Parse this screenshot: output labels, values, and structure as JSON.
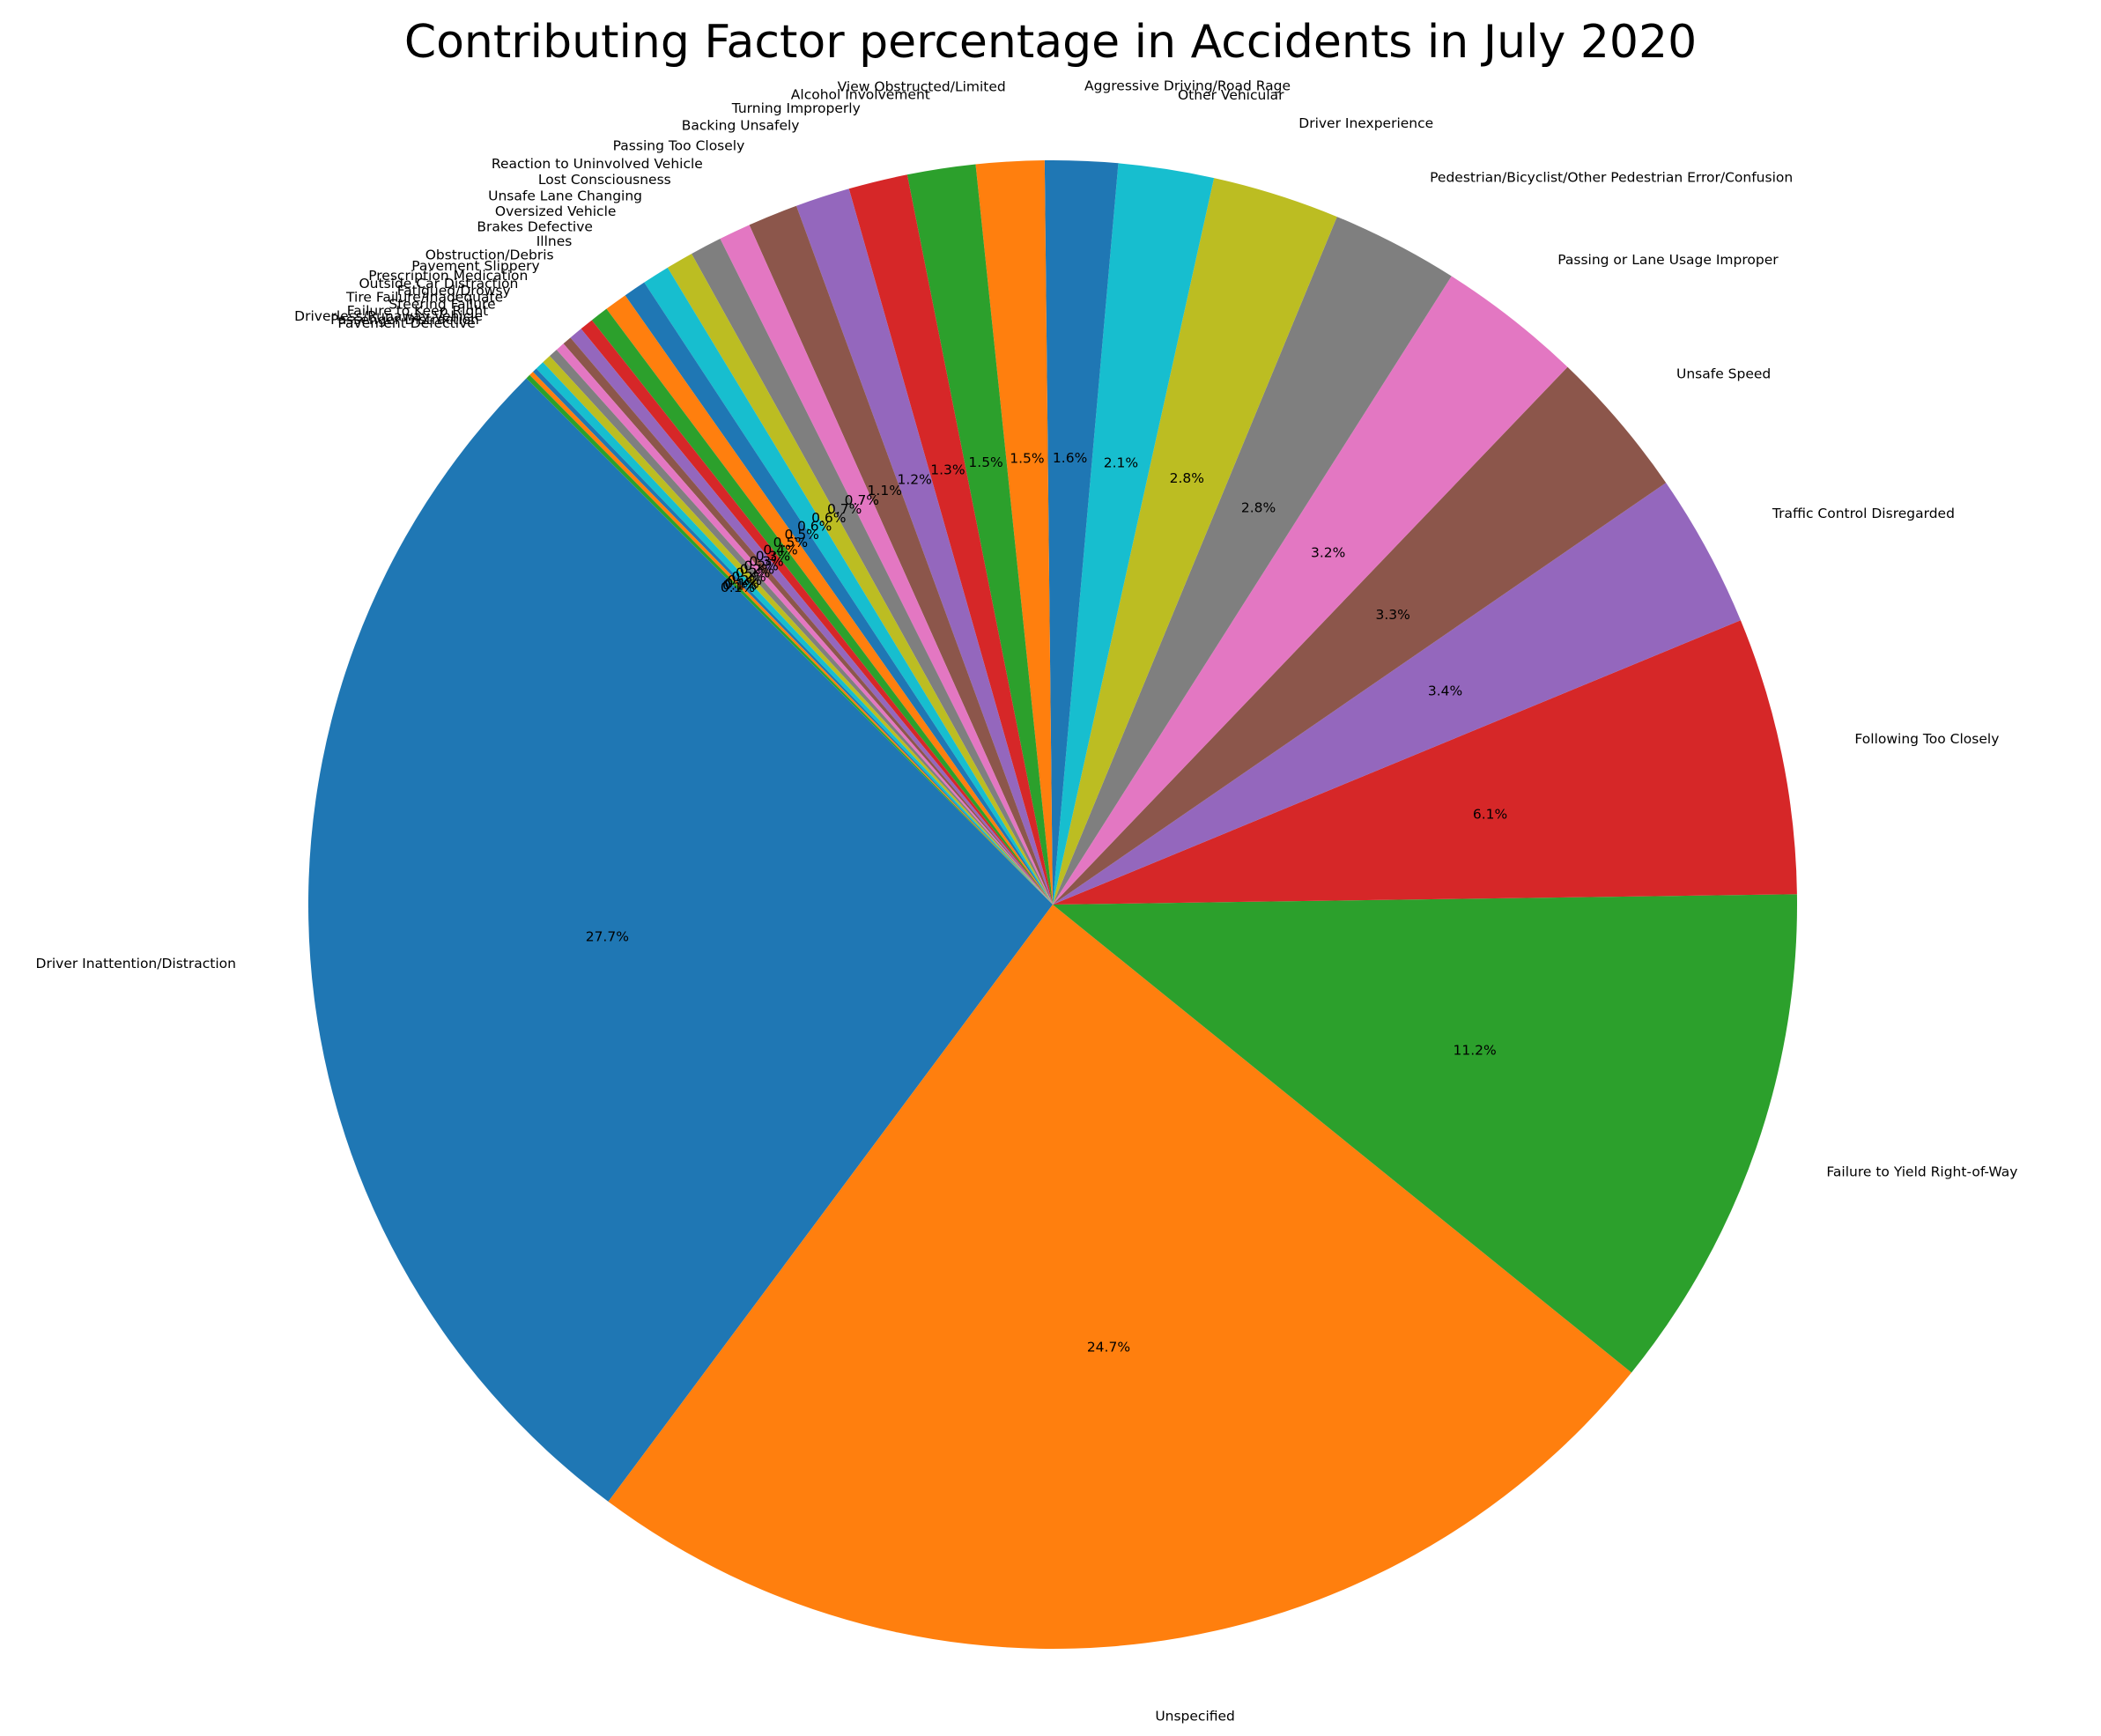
{
  "chart_data": {
    "type": "pie",
    "title": "Contributing Factor percentage in Accidents in July 2020",
    "start_angle_deg": 135,
    "direction": "counterclockwise",
    "slices": [
      {
        "label": "Driver Inattention/Distraction",
        "value": 27.7,
        "pct_text": "27.7%",
        "color": "#1f77b4"
      },
      {
        "label": "Unspecified",
        "value": 24.7,
        "pct_text": "24.7%",
        "color": "#ff7f0e"
      },
      {
        "label": "Failure to Yield Right-of-Way",
        "value": 11.2,
        "pct_text": "11.2%",
        "color": "#2ca02c"
      },
      {
        "label": "Following Too Closely",
        "value": 6.1,
        "pct_text": "6.1%",
        "color": "#d62728"
      },
      {
        "label": "Traffic Control Disregarded",
        "value": 3.4,
        "pct_text": "3.4%",
        "color": "#9467bd"
      },
      {
        "label": "Unsafe Speed",
        "value": 3.3,
        "pct_text": "3.3%",
        "color": "#8c564b"
      },
      {
        "label": "Passing or Lane Usage Improper",
        "value": 3.2,
        "pct_text": "3.2%",
        "color": "#e377c2"
      },
      {
        "label": "Pedestrian/Bicyclist/Other Pedestrian Error/Confusion",
        "value": 2.8,
        "pct_text": "2.8%",
        "color": "#7f7f7f"
      },
      {
        "label": "Driver Inexperience",
        "value": 2.8,
        "pct_text": "2.8%",
        "color": "#bcbd22"
      },
      {
        "label": "Other Vehicular",
        "value": 2.1,
        "pct_text": "2.1%",
        "color": "#17becf"
      },
      {
        "label": "Aggressive Driving/Road Rage",
        "value": 1.6,
        "pct_text": "1.6%",
        "color": "#1f77b4"
      },
      {
        "label": "View Obstructed/Limited",
        "value": 1.5,
        "pct_text": "1.5%",
        "color": "#ff7f0e"
      },
      {
        "label": "Alcohol Involvement",
        "value": 1.5,
        "pct_text": "1.5%",
        "color": "#2ca02c"
      },
      {
        "label": "Turning Improperly",
        "value": 1.3,
        "pct_text": "1.3%",
        "color": "#d62728"
      },
      {
        "label": "Backing Unsafely",
        "value": 1.2,
        "pct_text": "1.2%",
        "color": "#9467bd"
      },
      {
        "label": "Passing Too Closely",
        "value": 1.1,
        "pct_text": "1.1%",
        "color": "#8c564b"
      },
      {
        "label": "Reaction to Uninvolved Vehicle",
        "value": 0.7,
        "pct_text": "0.7%",
        "color": "#e377c2"
      },
      {
        "label": "Lost Consciousness",
        "value": 0.7,
        "pct_text": "0.7%",
        "color": "#7f7f7f"
      },
      {
        "label": "Unsafe Lane Changing",
        "value": 0.6,
        "pct_text": "0.6%",
        "color": "#bcbd22"
      },
      {
        "label": "Oversized Vehicle",
        "value": 0.6,
        "pct_text": "0.6%",
        "color": "#17becf"
      },
      {
        "label": "Brakes Defective",
        "value": 0.5,
        "pct_text": "0.5%",
        "color": "#1f77b4"
      },
      {
        "label": "Illnes",
        "value": 0.5,
        "pct_text": "0.5%",
        "color": "#ff7f0e"
      },
      {
        "label": "Obstruction/Debris",
        "value": 0.4,
        "pct_text": "0.4%",
        "color": "#2ca02c"
      },
      {
        "label": "Pavement Slippery",
        "value": 0.3,
        "pct_text": "0.3%",
        "color": "#d62728"
      },
      {
        "label": "Prescription Medication",
        "value": 0.3,
        "pct_text": "0.3%",
        "color": "#9467bd"
      },
      {
        "label": "Outside Car Distraction",
        "value": 0.2,
        "pct_text": "0.2%",
        "color": "#8c564b"
      },
      {
        "label": "Fatigued/Drowsy",
        "value": 0.2,
        "pct_text": "0.2%",
        "color": "#e377c2"
      },
      {
        "label": "Tire Failure/Inadequate",
        "value": 0.2,
        "pct_text": "0.2%",
        "color": "#7f7f7f"
      },
      {
        "label": "Steering Failure",
        "value": 0.2,
        "pct_text": "0.2%",
        "color": "#bcbd22"
      },
      {
        "label": "Failure to Keep Right",
        "value": 0.2,
        "pct_text": "0.2%",
        "color": "#17becf"
      },
      {
        "label": "Driverless/Runaway Vehicle",
        "value": 0.1,
        "pct_text": "0.1%",
        "color": "#1f77b4"
      },
      {
        "label": "Passenger Distraction",
        "value": 0.1,
        "pct_text": "0.1%",
        "color": "#ff7f0e"
      },
      {
        "label": "Pavement Defective",
        "value": 0.1,
        "pct_text": "0.1%",
        "color": "#2ca02c"
      }
    ]
  }
}
